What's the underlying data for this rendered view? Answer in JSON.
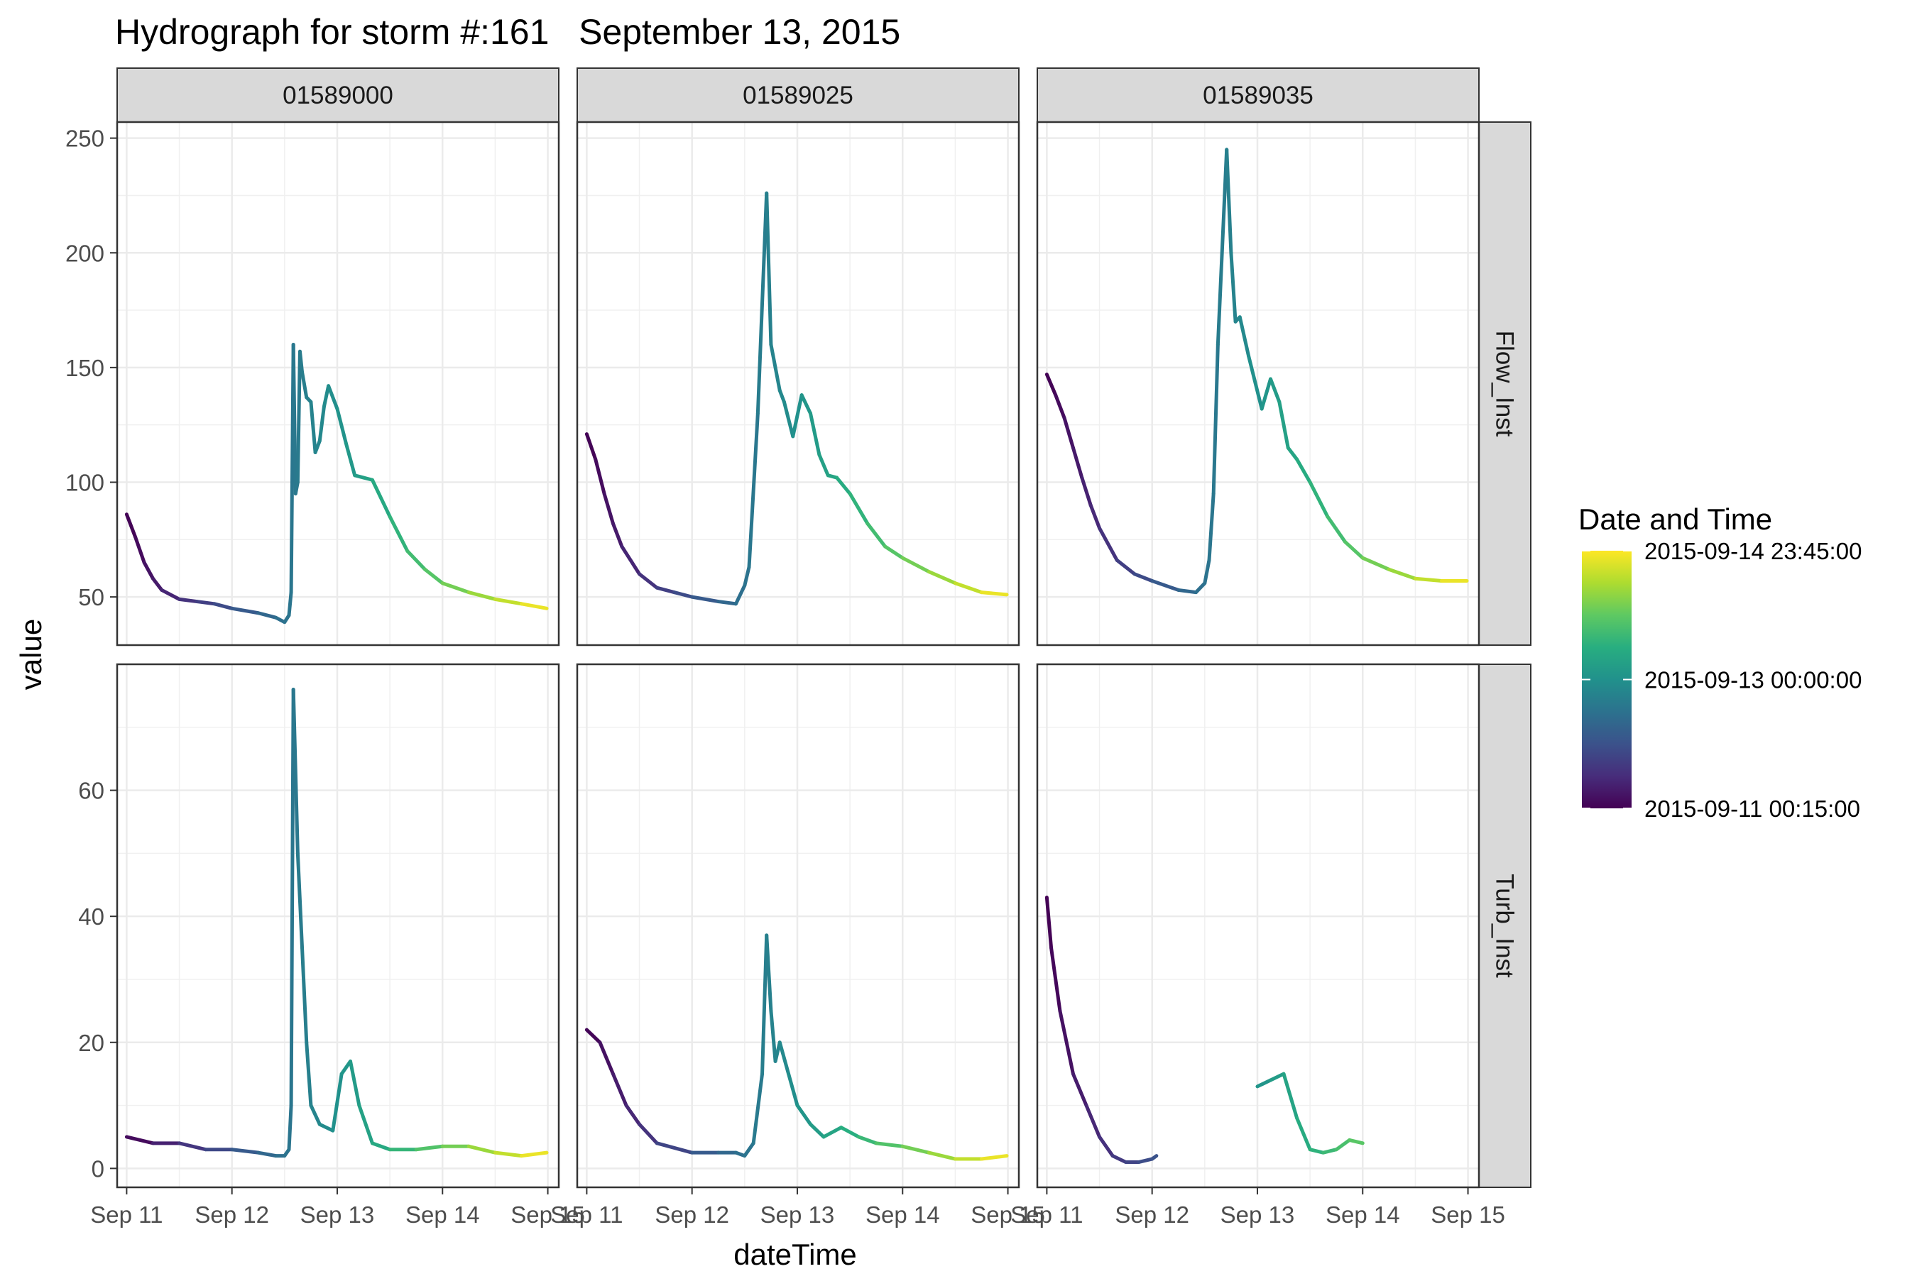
{
  "chart_data": {
    "type": "line",
    "title": "Hydrograph for storm #:161   September 13, 2015",
    "xlabel": "dateTime",
    "ylabel": "value",
    "x_tick_labels": [
      "Sep 11",
      "Sep 12",
      "Sep 13",
      "Sep 14",
      "Sep 15"
    ],
    "x_ticks": [
      "2015-09-11",
      "2015-09-12",
      "2015-09-13",
      "2015-09-14",
      "2015-09-15"
    ],
    "columns": [
      "01589000",
      "01589025",
      "01589035"
    ],
    "rows": [
      {
        "name": "Flow_Inst",
        "ylim": [
          29,
          257
        ],
        "yticks": [
          50,
          100,
          150,
          200,
          250
        ],
        "ytick_labels": [
          "50",
          "100",
          "150",
          "200",
          "250"
        ]
      },
      {
        "name": "Turb_Inst",
        "ylim": [
          -3,
          80
        ],
        "yticks": [
          0,
          20,
          40,
          60
        ],
        "ytick_labels": [
          "0",
          "20",
          "40",
          "60"
        ]
      }
    ],
    "grid": true,
    "legend": {
      "title": "Date and Time",
      "position": "right",
      "colormap": "viridis",
      "labels": [
        "2015-09-14 23:45:00",
        "2015-09-13 00:00:00",
        "2015-09-11 00:15:00"
      ],
      "values": [
        "2015-09-14T23:45",
        "2015-09-13T00:00",
        "2015-09-11T00:15"
      ]
    },
    "series": [
      {
        "site": "01589000",
        "variable": "Flow_Inst",
        "x": [
          "2015-09-11T00:00",
          "2015-09-11T02:00",
          "2015-09-11T04:00",
          "2015-09-11T06:00",
          "2015-09-11T08:00",
          "2015-09-11T12:00",
          "2015-09-11T16:00",
          "2015-09-11T20:00",
          "2015-09-12T00:00",
          "2015-09-12T06:00",
          "2015-09-12T10:00",
          "2015-09-12T12:00",
          "2015-09-12T13:00",
          "2015-09-12T13:30",
          "2015-09-12T14:00",
          "2015-09-12T14:30",
          "2015-09-12T15:00",
          "2015-09-12T15:30",
          "2015-09-12T16:00",
          "2015-09-12T17:00",
          "2015-09-12T18:00",
          "2015-09-12T19:00",
          "2015-09-12T20:00",
          "2015-09-12T21:00",
          "2015-09-12T22:00",
          "2015-09-13T00:00",
          "2015-09-13T02:00",
          "2015-09-13T04:00",
          "2015-09-13T06:00",
          "2015-09-13T08:00",
          "2015-09-13T12:00",
          "2015-09-13T16:00",
          "2015-09-13T20:00",
          "2015-09-14T00:00",
          "2015-09-14T06:00",
          "2015-09-14T12:00",
          "2015-09-14T18:00",
          "2015-09-14T23:45"
        ],
        "y": [
          86,
          76,
          65,
          58,
          53,
          49,
          48,
          47,
          45,
          43,
          41,
          39,
          42,
          52,
          160,
          95,
          100,
          157,
          148,
          137,
          135,
          113,
          118,
          133,
          142,
          132,
          117,
          103,
          102,
          101,
          85,
          70,
          62,
          56,
          52,
          49,
          47,
          45
        ]
      },
      {
        "site": "01589025",
        "variable": "Flow_Inst",
        "x": [
          "2015-09-11T00:00",
          "2015-09-11T02:00",
          "2015-09-11T04:00",
          "2015-09-11T06:00",
          "2015-09-11T08:00",
          "2015-09-11T12:00",
          "2015-09-11T16:00",
          "2015-09-11T20:00",
          "2015-09-12T00:00",
          "2015-09-12T06:00",
          "2015-09-12T10:00",
          "2015-09-12T12:00",
          "2015-09-12T13:00",
          "2015-09-12T15:00",
          "2015-09-12T17:00",
          "2015-09-12T18:00",
          "2015-09-12T19:00",
          "2015-09-12T20:00",
          "2015-09-12T21:00",
          "2015-09-12T23:00",
          "2015-09-13T01:00",
          "2015-09-13T03:00",
          "2015-09-13T05:00",
          "2015-09-13T07:00",
          "2015-09-13T09:00",
          "2015-09-13T12:00",
          "2015-09-13T16:00",
          "2015-09-13T20:00",
          "2015-09-14T00:00",
          "2015-09-14T06:00",
          "2015-09-14T12:00",
          "2015-09-14T18:00",
          "2015-09-14T23:45"
        ],
        "y": [
          121,
          110,
          95,
          82,
          72,
          60,
          54,
          52,
          50,
          48,
          47,
          55,
          63,
          130,
          226,
          160,
          150,
          140,
          135,
          120,
          138,
          130,
          112,
          103,
          102,
          95,
          82,
          72,
          67,
          61,
          56,
          52,
          51
        ]
      },
      {
        "site": "01589035",
        "variable": "Flow_Inst",
        "x": [
          "2015-09-11T00:00",
          "2015-09-11T02:00",
          "2015-09-11T04:00",
          "2015-09-11T06:00",
          "2015-09-11T08:00",
          "2015-09-11T10:00",
          "2015-09-11T12:00",
          "2015-09-11T16:00",
          "2015-09-11T20:00",
          "2015-09-12T00:00",
          "2015-09-12T06:00",
          "2015-09-12T10:00",
          "2015-09-12T12:00",
          "2015-09-12T13:00",
          "2015-09-12T14:00",
          "2015-09-12T15:00",
          "2015-09-12T17:00",
          "2015-09-12T18:00",
          "2015-09-12T19:00",
          "2015-09-12T20:00",
          "2015-09-12T22:00",
          "2015-09-13T01:00",
          "2015-09-13T03:00",
          "2015-09-13T05:00",
          "2015-09-13T07:00",
          "2015-09-13T09:00",
          "2015-09-13T12:00",
          "2015-09-13T16:00",
          "2015-09-13T20:00",
          "2015-09-14T00:00",
          "2015-09-14T06:00",
          "2015-09-14T12:00",
          "2015-09-14T18:00",
          "2015-09-14T23:45"
        ],
        "y": [
          147,
          138,
          128,
          115,
          102,
          90,
          80,
          66,
          60,
          57,
          53,
          52,
          56,
          66,
          95,
          160,
          245,
          200,
          170,
          172,
          155,
          132,
          145,
          135,
          115,
          110,
          100,
          85,
          74,
          67,
          62,
          58,
          57,
          57
        ]
      },
      {
        "site": "01589000",
        "variable": "Turb_Inst",
        "x": [
          "2015-09-11T00:00",
          "2015-09-11T06:00",
          "2015-09-11T12:00",
          "2015-09-11T18:00",
          "2015-09-12T00:00",
          "2015-09-12T06:00",
          "2015-09-12T10:00",
          "2015-09-12T12:00",
          "2015-09-12T13:00",
          "2015-09-12T13:30",
          "2015-09-12T14:00",
          "2015-09-12T15:00",
          "2015-09-12T16:00",
          "2015-09-12T17:00",
          "2015-09-12T18:00",
          "2015-09-12T20:00",
          "2015-09-12T23:00",
          "2015-09-13T01:00",
          "2015-09-13T03:00",
          "2015-09-13T05:00",
          "2015-09-13T08:00",
          "2015-09-13T12:00",
          "2015-09-13T18:00",
          "2015-09-14T00:00",
          "2015-09-14T06:00",
          "2015-09-14T12:00",
          "2015-09-14T18:00",
          "2015-09-14T23:45"
        ],
        "y": [
          5,
          4,
          4,
          3,
          3,
          2.5,
          2,
          2,
          3,
          10,
          76,
          50,
          35,
          20,
          10,
          7,
          6,
          15,
          17,
          10,
          4,
          3,
          3,
          3.5,
          3.5,
          2.5,
          2,
          2.5
        ]
      },
      {
        "site": "01589025",
        "variable": "Turb_Inst",
        "x": [
          "2015-09-11T00:00",
          "2015-09-11T03:00",
          "2015-09-11T06:00",
          "2015-09-11T09:00",
          "2015-09-11T12:00",
          "2015-09-11T16:00",
          "2015-09-12T00:00",
          "2015-09-12T06:00",
          "2015-09-12T10:00",
          "2015-09-12T12:00",
          "2015-09-12T14:00",
          "2015-09-12T16:00",
          "2015-09-12T17:00",
          "2015-09-12T18:00",
          "2015-09-12T19:00",
          "2015-09-12T20:00",
          "2015-09-12T22:00",
          "2015-09-13T00:00",
          "2015-09-13T03:00",
          "2015-09-13T06:00",
          "2015-09-13T10:00",
          "2015-09-13T14:00",
          "2015-09-13T18:00",
          "2015-09-14T00:00",
          "2015-09-14T06:00",
          "2015-09-14T12:00",
          "2015-09-14T18:00",
          "2015-09-14T23:45"
        ],
        "y": [
          22,
          20,
          15,
          10,
          7,
          4,
          2.5,
          2.5,
          2.5,
          2,
          4,
          15,
          37,
          25,
          17,
          20,
          15,
          10,
          7,
          5,
          6.5,
          5,
          4,
          3.5,
          2.5,
          1.5,
          1.5,
          2
        ]
      },
      {
        "site": "01589035",
        "variable": "Turb_Inst",
        "x": [
          "2015-09-11T00:00",
          "2015-09-11T01:00",
          "2015-09-11T03:00",
          "2015-09-11T06:00",
          "2015-09-11T09:00",
          "2015-09-11T12:00",
          "2015-09-11T15:00",
          "2015-09-11T18:00",
          "2015-09-11T21:00",
          "2015-09-12T00:00",
          "2015-09-12T01:00"
        ],
        "y": [
          43,
          35,
          25,
          15,
          10,
          5,
          2,
          1,
          1,
          1.5,
          2
        ]
      },
      {
        "site": "01589035",
        "variable": "Turb_Inst",
        "x": [
          "2015-09-13T00:00",
          "2015-09-13T03:00",
          "2015-09-13T06:00",
          "2015-09-13T09:00",
          "2015-09-13T12:00",
          "2015-09-13T15:00",
          "2015-09-13T18:00",
          "2015-09-13T21:00",
          "2015-09-14T00:00"
        ],
        "y": [
          13,
          14,
          15,
          8,
          3,
          2.5,
          3,
          4.5,
          4
        ]
      }
    ]
  }
}
